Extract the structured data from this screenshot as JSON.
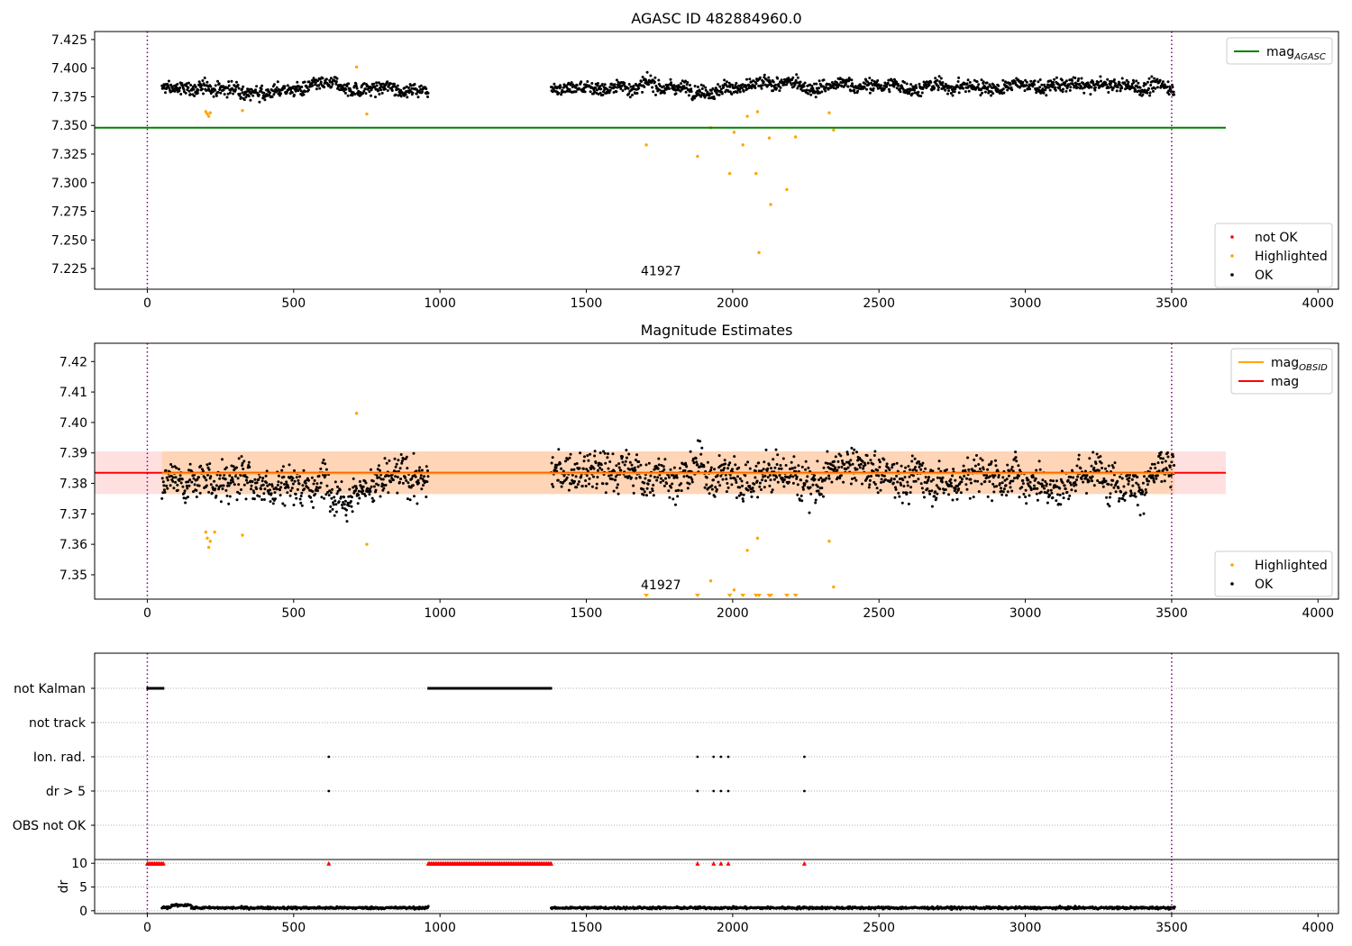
{
  "figure_title": "AGASC ID 482884960.0",
  "chart_data": [
    {
      "id": "panel1",
      "type": "scatter",
      "title": "AGASC ID 482884960.0",
      "xlim": [
        -180,
        4070
      ],
      "ylim": [
        7.207,
        7.432
      ],
      "xticks": [
        0,
        500,
        1000,
        1500,
        2000,
        2500,
        3000,
        3500,
        4000
      ],
      "xtick_labels": [
        "0",
        "500",
        "1000",
        "1500",
        "2000",
        "2500",
        "3000",
        "3500",
        "4000"
      ],
      "yticks": [
        7.225,
        7.25,
        7.275,
        7.3,
        7.325,
        7.35,
        7.375,
        7.4,
        7.425
      ],
      "ytick_labels": [
        "7.225",
        "7.250",
        "7.275",
        "7.300",
        "7.325",
        "7.350",
        "7.375",
        "7.400",
        "7.425"
      ],
      "vlines": [
        0,
        3500
      ],
      "hline": {
        "name": "mag_AGASC",
        "value": 7.348,
        "x0": -180,
        "x1": 3685,
        "color": "#008000"
      },
      "annotation": {
        "text": "41927",
        "x": 1755,
        "y": 7.219
      },
      "ok_segments": [
        {
          "x0": 50,
          "x1": 960,
          "center": 7.382,
          "spread": 0.007
        },
        {
          "x0": 1380,
          "x1": 3510,
          "center": 7.384,
          "spread": 0.007
        }
      ],
      "highlighted_points": [
        [
          200,
          7.362
        ],
        [
          205,
          7.36
        ],
        [
          210,
          7.358
        ],
        [
          215,
          7.361
        ],
        [
          325,
          7.363
        ],
        [
          715,
          7.401
        ],
        [
          750,
          7.36
        ],
        [
          1705,
          7.333
        ],
        [
          1880,
          7.323
        ],
        [
          1925,
          7.348
        ],
        [
          1990,
          7.308
        ],
        [
          2005,
          7.344
        ],
        [
          2035,
          7.333
        ],
        [
          2050,
          7.358
        ],
        [
          2080,
          7.308
        ],
        [
          2085,
          7.362
        ],
        [
          2090,
          7.239
        ],
        [
          2125,
          7.339
        ],
        [
          2130,
          7.281
        ],
        [
          2185,
          7.294
        ],
        [
          2215,
          7.34
        ],
        [
          2330,
          7.361
        ],
        [
          2345,
          7.346
        ]
      ],
      "legend_top": [
        {
          "label": "mag",
          "sub": "AGASC",
          "color": "#008000"
        }
      ],
      "legend_bottom": [
        {
          "label": "not OK",
          "color": "#ff0000"
        },
        {
          "label": "Highlighted",
          "color": "#ffa500"
        },
        {
          "label": "OK",
          "color": "#000000"
        }
      ]
    },
    {
      "id": "panel2",
      "type": "scatter",
      "title": "Magnitude Estimates",
      "xlim": [
        -180,
        4070
      ],
      "ylim": [
        7.342,
        7.426
      ],
      "xticks": [
        0,
        500,
        1000,
        1500,
        2000,
        2500,
        3000,
        3500,
        4000
      ],
      "xtick_labels": [
        "0",
        "500",
        "1000",
        "1500",
        "2000",
        "2500",
        "3000",
        "3500",
        "4000"
      ],
      "yticks": [
        7.35,
        7.36,
        7.37,
        7.38,
        7.39,
        7.4,
        7.41,
        7.42
      ],
      "ytick_labels": [
        "7.35",
        "7.36",
        "7.37",
        "7.38",
        "7.39",
        "7.40",
        "7.41",
        "7.42"
      ],
      "vlines": [
        0,
        3500
      ],
      "mag_line": {
        "name": "mag",
        "value": 7.3835,
        "x0": -180,
        "x1": 3685,
        "color": "#ff0000"
      },
      "mag_band": [
        7.3765,
        7.3905
      ],
      "obsid_line": {
        "name": "mag_OBSID",
        "value": 7.3833,
        "x0": 50,
        "x1": 3510,
        "color": "#ffa500"
      },
      "obsid_band": [
        7.3765,
        7.3905
      ],
      "annotation": {
        "text": "41927",
        "x": 1755,
        "y": 7.3452
      },
      "ok_segments": [
        {
          "x0": 50,
          "x1": 960,
          "center": 7.381,
          "spread": 0.0075
        },
        {
          "x0": 1380,
          "x1": 3510,
          "center": 7.383,
          "spread": 0.0075
        }
      ],
      "highlighted_points": [
        [
          200,
          7.364
        ],
        [
          205,
          7.362
        ],
        [
          210,
          7.359
        ],
        [
          215,
          7.361
        ],
        [
          230,
          7.364
        ],
        [
          325,
          7.363
        ],
        [
          715,
          7.403
        ],
        [
          750,
          7.36
        ],
        [
          1925,
          7.348
        ],
        [
          2005,
          7.345
        ],
        [
          2050,
          7.358
        ],
        [
          2085,
          7.362
        ],
        [
          2330,
          7.361
        ],
        [
          2345,
          7.346
        ]
      ],
      "highlighted_offscale": [
        1705,
        1880,
        1990,
        2035,
        2080,
        2090,
        2125,
        2130,
        2185,
        2215
      ],
      "legend_top": [
        {
          "label": "mag",
          "sub": "OBSID",
          "color": "#ffa500"
        },
        {
          "label": "mag",
          "sub": "",
          "color": "#ff0000"
        }
      ],
      "legend_bottom": [
        {
          "label": "Highlighted",
          "color": "#ffa500"
        },
        {
          "label": "OK",
          "color": "#000000"
        }
      ]
    },
    {
      "id": "panel3",
      "type": "scatter",
      "title": "",
      "xlim": [
        -180,
        4070
      ],
      "vlines": [
        0,
        3500
      ],
      "flag_rows": [
        "not Kalman",
        "not track",
        "Ion. rad.",
        "dr > 5",
        "OBS not OK"
      ],
      "flag_ranges": {
        "not Kalman": [
          [
            0,
            55
          ],
          [
            960,
            1380
          ]
        ]
      },
      "flag_points": {
        "Ion. rad.": [
          620,
          1880,
          1935,
          1960,
          1985,
          2245
        ],
        "dr > 5": [
          620,
          1880,
          1935,
          1960,
          1985,
          2245
        ]
      }
    },
    {
      "id": "panel4",
      "type": "scatter",
      "title": "",
      "ylabel": "dr",
      "xlim": [
        -180,
        4070
      ],
      "ylim": [
        -0.6,
        10.8
      ],
      "xticks": [
        0,
        500,
        1000,
        1500,
        2000,
        2500,
        3000,
        3500,
        4000
      ],
      "xtick_labels": [
        "0",
        "500",
        "1000",
        "1500",
        "2000",
        "2500",
        "3000",
        "3500",
        "4000"
      ],
      "yticks": [
        0,
        5,
        10
      ],
      "ytick_labels": [
        "0",
        "5",
        "10"
      ],
      "vlines": [
        0,
        3500
      ],
      "capped_value": 10,
      "capped_ranges": [
        [
          0,
          55
        ],
        [
          960,
          1380
        ]
      ],
      "capped_points": [
        620,
        1880,
        1935,
        1960,
        1985,
        2245
      ],
      "dr_segments": [
        {
          "x0": 50,
          "x1": 960,
          "center": 0.6,
          "spread": 0.35
        },
        {
          "x0": 1380,
          "x1": 3510,
          "center": 0.6,
          "spread": 0.35
        }
      ]
    }
  ]
}
